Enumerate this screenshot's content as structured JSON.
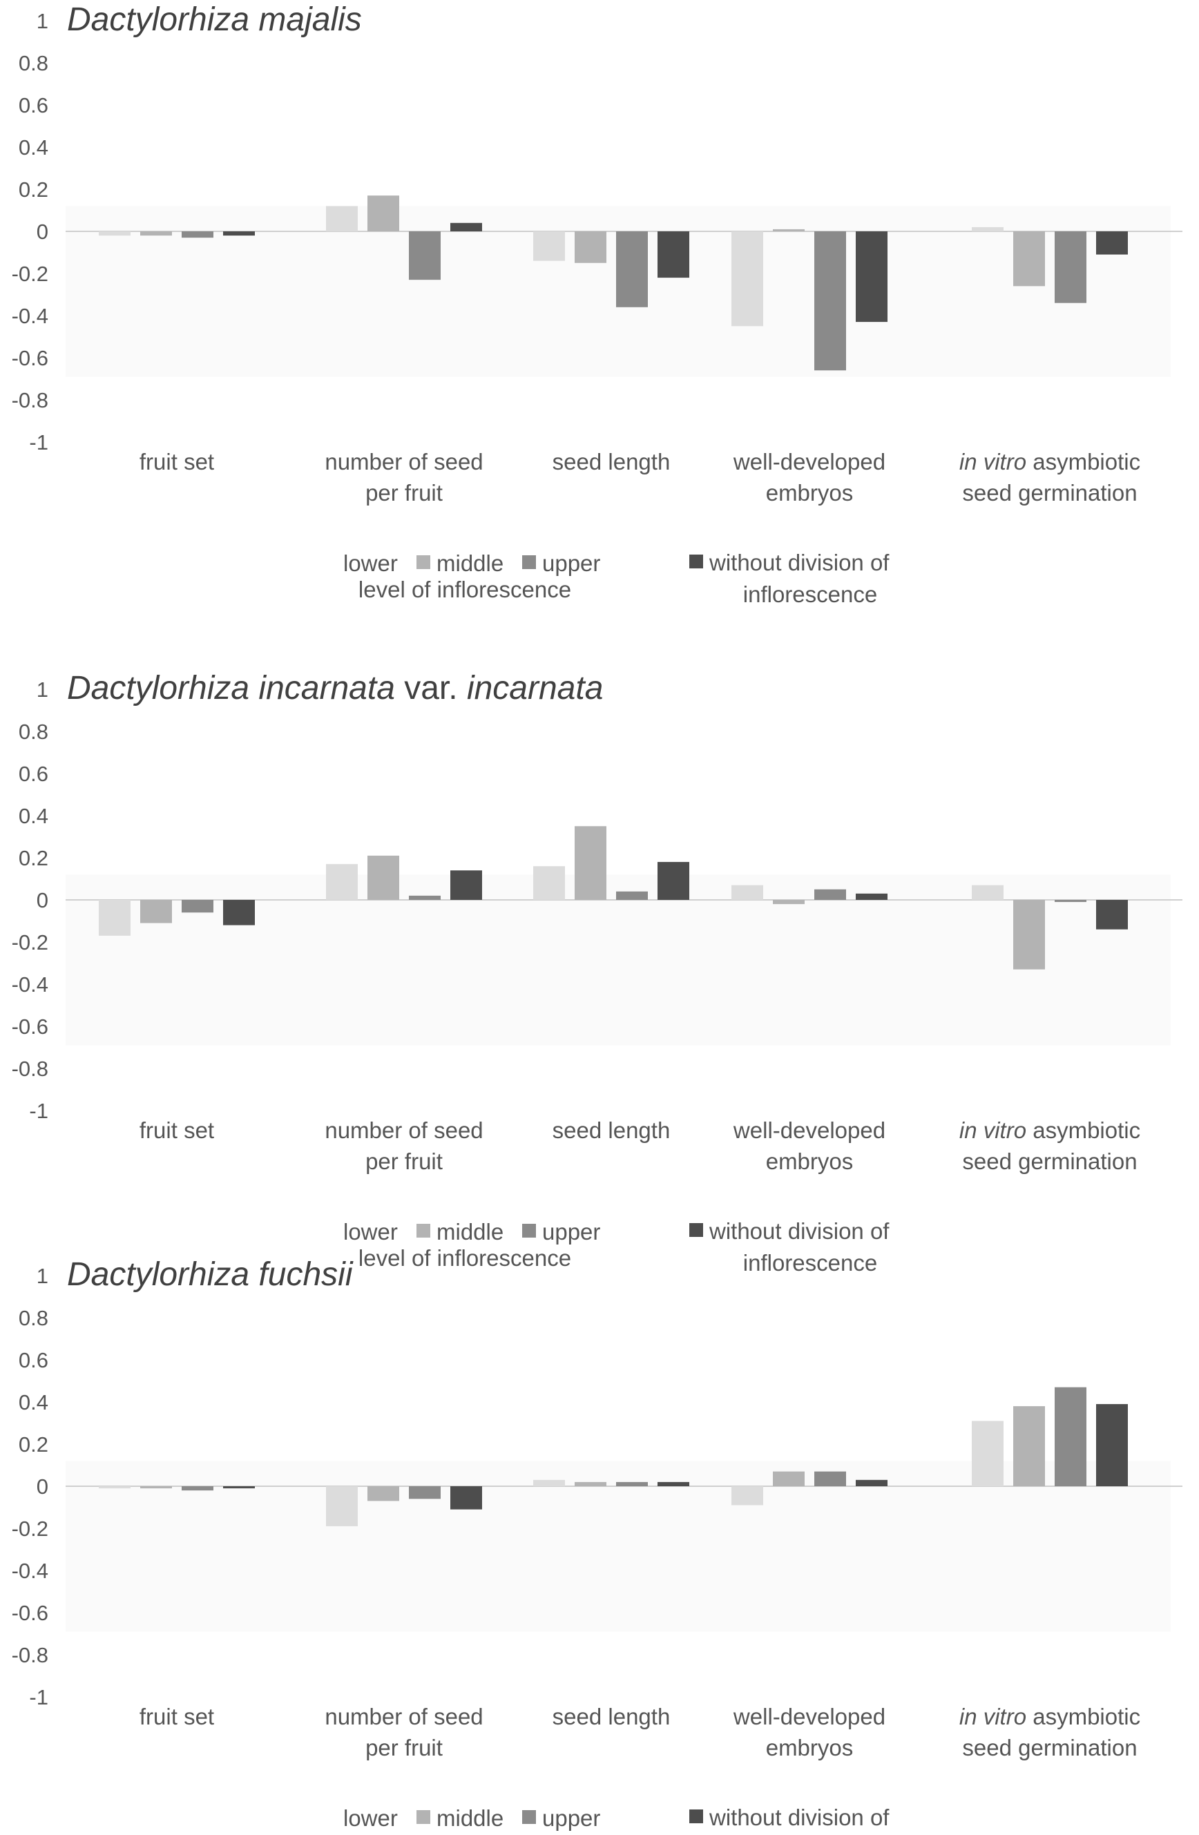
{
  "legend": {
    "lower": "lower",
    "middle": "middle",
    "upper": "upper",
    "level": "level of inflorescence",
    "without_line1": "without division of",
    "without_line2": "inflorescence"
  },
  "series_colors": [
    "#dcdcdc",
    "#b3b3b3",
    "#8a8a8a",
    "#4d4d4d"
  ],
  "chart_data": [
    {
      "type": "bar",
      "title_prefix": "Dactylorhiza majalis",
      "title_mid": "",
      "title_suffix": "",
      "ylim": [
        -1,
        1
      ],
      "yticks": [
        "1",
        "0.8",
        "0.6",
        "0.4",
        "0.2",
        "0",
        "-0.2",
        "-0.4",
        "-0.6",
        "-0.8",
        "-1"
      ],
      "categories": [
        {
          "italic": "",
          "rest": "fruit set",
          "line2": ""
        },
        {
          "italic": "",
          "rest": "number of seed",
          "line2": "per fruit"
        },
        {
          "italic": "",
          "rest": "seed length",
          "line2": ""
        },
        {
          "italic": "",
          "rest": "well-developed",
          "line2": "embryos"
        },
        {
          "italic": "in vitro",
          "rest": " asymbiotic",
          "line2": "seed germination"
        }
      ],
      "series": [
        {
          "name": "lower",
          "values": [
            -0.02,
            0.12,
            -0.14,
            -0.45,
            0.02
          ]
        },
        {
          "name": "middle",
          "values": [
            -0.02,
            0.17,
            -0.15,
            0.01,
            -0.26
          ]
        },
        {
          "name": "upper",
          "values": [
            -0.03,
            -0.23,
            -0.36,
            -0.66,
            -0.34
          ]
        },
        {
          "name": "without division of inflorescence",
          "values": [
            -0.02,
            0.04,
            -0.22,
            -0.43,
            -0.11
          ]
        }
      ]
    },
    {
      "type": "bar",
      "title_prefix": "Dactylorhiza incarnata",
      "title_mid": " var. ",
      "title_suffix": "incarnata",
      "ylim": [
        -1,
        1
      ],
      "yticks": [
        "1",
        "0.8",
        "0.6",
        "0.4",
        "0.2",
        "0",
        "-0.2",
        "-0.4",
        "-0.6",
        "-0.8",
        "-1"
      ],
      "categories": [
        {
          "italic": "",
          "rest": "fruit set",
          "line2": ""
        },
        {
          "italic": "",
          "rest": "number of seed",
          "line2": "per fruit"
        },
        {
          "italic": "",
          "rest": "seed length",
          "line2": ""
        },
        {
          "italic": "",
          "rest": "well-developed",
          "line2": "embryos"
        },
        {
          "italic": "in vitro",
          "rest": " asymbiotic",
          "line2": "seed germination"
        }
      ],
      "series": [
        {
          "name": "lower",
          "values": [
            -0.17,
            0.17,
            0.16,
            0.07,
            0.07
          ]
        },
        {
          "name": "middle",
          "values": [
            -0.11,
            0.21,
            0.35,
            -0.02,
            -0.33
          ]
        },
        {
          "name": "upper",
          "values": [
            -0.06,
            0.02,
            0.04,
            0.05,
            -0.01
          ]
        },
        {
          "name": "without division of inflorescence",
          "values": [
            -0.12,
            0.14,
            0.18,
            0.03,
            -0.14
          ]
        }
      ]
    },
    {
      "type": "bar",
      "title_prefix": "Dactylorhiza fuchsii",
      "title_mid": "",
      "title_suffix": "",
      "ylim": [
        -1,
        1
      ],
      "yticks": [
        "1",
        "0.8",
        "0.6",
        "0.4",
        "0.2",
        "0",
        "-0.2",
        "-0.4",
        "-0.6",
        "-0.8",
        "-1"
      ],
      "categories": [
        {
          "italic": "",
          "rest": "fruit set",
          "line2": ""
        },
        {
          "italic": "",
          "rest": "number of seed",
          "line2": "per fruit"
        },
        {
          "italic": "",
          "rest": "seed length",
          "line2": ""
        },
        {
          "italic": "",
          "rest": "well-developed",
          "line2": "embryos"
        },
        {
          "italic": "in vitro",
          "rest": " asymbiotic",
          "line2": "seed germination"
        }
      ],
      "series": [
        {
          "name": "lower",
          "values": [
            -0.01,
            -0.19,
            0.03,
            -0.09,
            0.31
          ]
        },
        {
          "name": "middle",
          "values": [
            -0.01,
            -0.07,
            0.02,
            0.07,
            0.38
          ]
        },
        {
          "name": "upper",
          "values": [
            -0.02,
            -0.06,
            0.02,
            0.07,
            0.47
          ]
        },
        {
          "name": "without division of inflorescence",
          "values": [
            -0.01,
            -0.11,
            0.02,
            0.03,
            0.39
          ]
        }
      ]
    }
  ]
}
